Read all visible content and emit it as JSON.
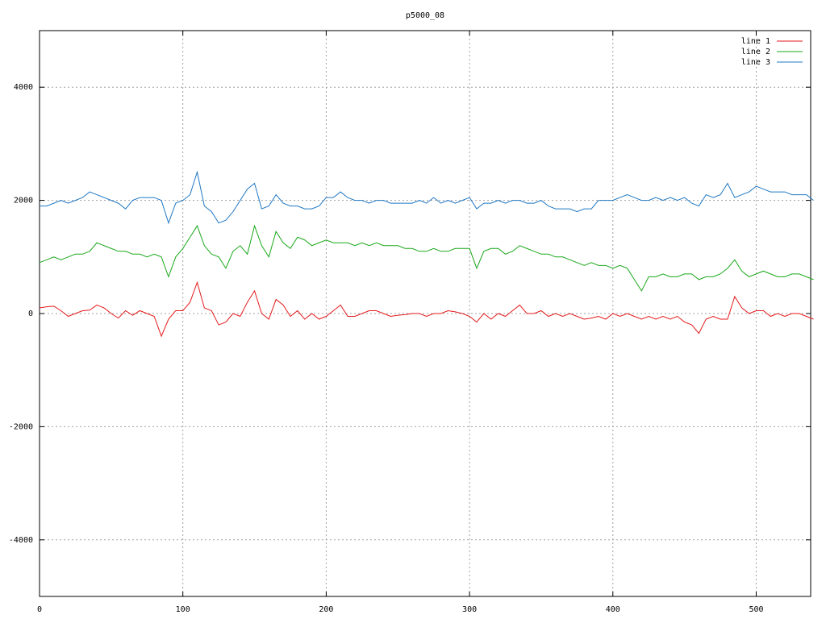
{
  "chart_data": {
    "type": "line",
    "title": "p5000_08",
    "x": [
      0,
      5,
      10,
      15,
      20,
      25,
      30,
      35,
      40,
      45,
      50,
      55,
      60,
      65,
      70,
      75,
      80,
      85,
      90,
      95,
      100,
      105,
      110,
      115,
      120,
      125,
      130,
      135,
      140,
      145,
      150,
      155,
      160,
      165,
      170,
      175,
      180,
      185,
      190,
      195,
      200,
      205,
      210,
      215,
      220,
      225,
      230,
      235,
      240,
      245,
      250,
      255,
      260,
      265,
      270,
      275,
      280,
      285,
      290,
      295,
      300,
      305,
      310,
      315,
      320,
      325,
      330,
      335,
      340,
      345,
      350,
      355,
      360,
      365,
      370,
      375,
      380,
      385,
      390,
      395,
      400,
      405,
      410,
      415,
      420,
      425,
      430,
      435,
      440,
      445,
      450,
      455,
      460,
      465,
      470,
      475,
      480,
      485,
      490,
      495,
      500,
      505,
      510,
      515,
      520,
      525,
      530,
      535,
      540
    ],
    "series": [
      {
        "name": "line 1",
        "color": "#e41a1c",
        "values": [
          100,
          120,
          130,
          50,
          -50,
          0,
          50,
          60,
          150,
          100,
          0,
          -80,
          50,
          -30,
          50,
          0,
          -50,
          -400,
          -100,
          50,
          50,
          200,
          550,
          100,
          50,
          -200,
          -150,
          0,
          -50,
          200,
          400,
          0,
          -100,
          250,
          150,
          -50,
          50,
          -100,
          0,
          -100,
          -50,
          50,
          150,
          -50,
          -50,
          0,
          50,
          50,
          0,
          -50,
          -30,
          -20,
          0,
          0,
          -50,
          0,
          0,
          50,
          30,
          0,
          -50,
          -150,
          0,
          -100,
          0,
          -50,
          50,
          150,
          0,
          0,
          50,
          -50,
          0,
          -50,
          0,
          -50,
          -100,
          -80,
          -50,
          -100,
          0,
          -50,
          0,
          -50,
          -100,
          -50,
          -100,
          -50,
          -100,
          -50,
          -150,
          -200,
          -350,
          -100,
          -50,
          -100,
          -100,
          300,
          100,
          0,
          50,
          50,
          -50,
          0,
          -50,
          0,
          0,
          -50,
          -100
        ]
      },
      {
        "name": "line 2",
        "color": "#1aa81a",
        "values": [
          900,
          950,
          1000,
          950,
          1000,
          1050,
          1050,
          1100,
          1250,
          1200,
          1150,
          1100,
          1100,
          1050,
          1050,
          1000,
          1050,
          1000,
          650,
          1000,
          1150,
          1350,
          1550,
          1200,
          1050,
          1000,
          800,
          1100,
          1200,
          1050,
          1550,
          1200,
          1000,
          1450,
          1250,
          1150,
          1350,
          1300,
          1200,
          1250,
          1300,
          1250,
          1250,
          1250,
          1200,
          1250,
          1200,
          1250,
          1200,
          1200,
          1200,
          1150,
          1150,
          1100,
          1100,
          1150,
          1100,
          1100,
          1150,
          1150,
          1150,
          800,
          1100,
          1150,
          1150,
          1050,
          1100,
          1200,
          1150,
          1100,
          1050,
          1050,
          1000,
          1000,
          950,
          900,
          850,
          900,
          850,
          850,
          800,
          850,
          800,
          600,
          400,
          650,
          650,
          700,
          650,
          650,
          700,
          700,
          600,
          650,
          650,
          700,
          800,
          950,
          750,
          650,
          700,
          750,
          700,
          650,
          650,
          700,
          700,
          650,
          600
        ]
      },
      {
        "name": "line 3",
        "color": "#1f78c4",
        "values": [
          1900,
          1900,
          1950,
          2000,
          1950,
          2000,
          2050,
          2150,
          2100,
          2050,
          2000,
          1950,
          1850,
          2000,
          2050,
          2050,
          2050,
          2000,
          1600,
          1950,
          2000,
          2100,
          2500,
          1900,
          1800,
          1600,
          1650,
          1800,
          2000,
          2200,
          2300,
          1850,
          1900,
          2100,
          1950,
          1900,
          1900,
          1850,
          1850,
          1900,
          2050,
          2050,
          2150,
          2050,
          2000,
          2000,
          1950,
          2000,
          2000,
          1950,
          1950,
          1950,
          1950,
          2000,
          1950,
          2050,
          1950,
          2000,
          1950,
          2000,
          2050,
          1850,
          1950,
          1950,
          2000,
          1950,
          2000,
          2000,
          1950,
          1950,
          2000,
          1900,
          1850,
          1850,
          1850,
          1800,
          1850,
          1850,
          2000,
          2000,
          2000,
          2050,
          2100,
          2050,
          2000,
          2000,
          2050,
          2000,
          2050,
          2000,
          2050,
          1950,
          1900,
          2100,
          2050,
          2100,
          2300,
          2050,
          2100,
          2150,
          2250,
          2200,
          2150,
          2150,
          2150,
          2100,
          2100,
          2100,
          2000
        ]
      }
    ],
    "xlim": [
      0,
      538
    ],
    "ylim": [
      -5000,
      5000
    ],
    "xticks": [
      0,
      100,
      200,
      300,
      400,
      500
    ],
    "yticks": [
      -4000,
      -2000,
      0,
      2000,
      4000
    ],
    "grid": true,
    "legend": "top-right"
  }
}
